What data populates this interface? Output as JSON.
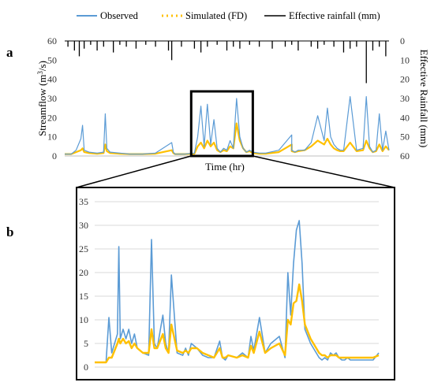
{
  "chart_data": [
    {
      "type": "line",
      "panel_label": "a",
      "xlabel": "Time (hr)",
      "ylabel": "Streamflow (m³/s)",
      "ylabel_right": "Effective Rainfall (mm)",
      "ylim": [
        0,
        60
      ],
      "yticks": [
        0,
        10,
        20,
        30,
        40,
        50,
        60
      ],
      "y2lim": [
        60,
        0
      ],
      "y2ticks": [
        0,
        10,
        20,
        30,
        40,
        50,
        60
      ],
      "y2_inverted": true,
      "grid": false,
      "legend_position": "top",
      "x_fraction": [
        0.0,
        0.02,
        0.035,
        0.05,
        0.055,
        0.06,
        0.075,
        0.1,
        0.12,
        0.125,
        0.13,
        0.14,
        0.17,
        0.2,
        0.24,
        0.28,
        0.33,
        0.335,
        0.34,
        0.37,
        0.4,
        0.41,
        0.42,
        0.43,
        0.44,
        0.45,
        0.46,
        0.47,
        0.48,
        0.49,
        0.5,
        0.51,
        0.52,
        0.53,
        0.54,
        0.55,
        0.56,
        0.57,
        0.58,
        0.6,
        0.62,
        0.66,
        0.7,
        0.7,
        0.71,
        0.72,
        0.74,
        0.76,
        0.78,
        0.8,
        0.81,
        0.82,
        0.83,
        0.84,
        0.85,
        0.86,
        0.88,
        0.9,
        0.92,
        0.93,
        0.94,
        0.95,
        0.96,
        0.97,
        0.98,
        0.99,
        1.0
      ],
      "series": [
        {
          "name": "Observed",
          "color": "#5B9BD5",
          "values": [
            1,
            1,
            3,
            9,
            16,
            3,
            2,
            1.5,
            2,
            22,
            4,
            2,
            1.5,
            1,
            1,
            1.5,
            7,
            2,
            1,
            1,
            1.5,
            10,
            26,
            5,
            27,
            6,
            19,
            4,
            2,
            4,
            3,
            8,
            4,
            30,
            10,
            4,
            2,
            3,
            2,
            1.5,
            1.5,
            3,
            11,
            3,
            2,
            3,
            3,
            7,
            21,
            8,
            25,
            10,
            6,
            4,
            3,
            3,
            31,
            3,
            4,
            31,
            5,
            2,
            3,
            22,
            3,
            13,
            3
          ]
        },
        {
          "name": "Simulated (FD)",
          "color": "#FFC000",
          "values": [
            1,
            1,
            2,
            3,
            4,
            2,
            1.5,
            1.2,
            1.5,
            6,
            2.5,
            1.5,
            1.2,
            1,
            1,
            1.2,
            3,
            1.5,
            1,
            1,
            1.2,
            5,
            7,
            4,
            8,
            5,
            7,
            3,
            2,
            3,
            2.5,
            5,
            4,
            17,
            8,
            4,
            2,
            2.5,
            1.5,
            1.2,
            1.2,
            2,
            6,
            2.5,
            2,
            2.5,
            3,
            5,
            8,
            6,
            9,
            6,
            4,
            3,
            2.5,
            2.5,
            7,
            2.5,
            3,
            8,
            4,
            2,
            2.5,
            6,
            2.5,
            5,
            3
          ]
        },
        {
          "name": "Effective rainfall (mm)",
          "color": "#000000",
          "type": "bar",
          "x_fraction": [
            0.01,
            0.03,
            0.045,
            0.06,
            0.08,
            0.1,
            0.12,
            0.15,
            0.17,
            0.19,
            0.22,
            0.25,
            0.28,
            0.32,
            0.33,
            0.36,
            0.4,
            0.42,
            0.44,
            0.47,
            0.5,
            0.52,
            0.54,
            0.57,
            0.6,
            0.64,
            0.68,
            0.7,
            0.72,
            0.76,
            0.78,
            0.8,
            0.83,
            0.86,
            0.88,
            0.9,
            0.93,
            0.95,
            0.97,
            0.99
          ],
          "values": [
            3,
            5,
            8,
            4,
            2,
            5,
            3,
            6,
            2,
            3,
            4,
            2,
            3,
            5,
            10,
            3,
            4,
            6,
            3,
            2,
            5,
            3,
            4,
            2,
            3,
            4,
            3,
            2,
            5,
            3,
            4,
            2,
            3,
            6,
            4,
            3,
            22,
            5,
            3,
            8
          ]
        }
      ],
      "zoom_box_x_fraction": [
        0.39,
        0.58
      ]
    },
    {
      "type": "line",
      "panel_label": "b",
      "ylim": [
        0,
        35
      ],
      "yticks": [
        0,
        5,
        10,
        15,
        20,
        25,
        30,
        35
      ],
      "grid": true,
      "x_fraction": [
        0.0,
        0.03,
        0.04,
        0.05,
        0.06,
        0.08,
        0.085,
        0.09,
        0.1,
        0.11,
        0.12,
        0.13,
        0.14,
        0.15,
        0.17,
        0.19,
        0.2,
        0.21,
        0.22,
        0.24,
        0.25,
        0.26,
        0.27,
        0.29,
        0.31,
        0.32,
        0.33,
        0.34,
        0.36,
        0.38,
        0.4,
        0.42,
        0.44,
        0.45,
        0.46,
        0.47,
        0.5,
        0.52,
        0.54,
        0.55,
        0.56,
        0.58,
        0.6,
        0.62,
        0.65,
        0.67,
        0.68,
        0.69,
        0.7,
        0.71,
        0.72,
        0.73,
        0.74,
        0.76,
        0.78,
        0.79,
        0.8,
        0.81,
        0.82,
        0.83,
        0.84,
        0.85,
        0.86,
        0.87,
        0.88,
        0.89,
        0.9,
        0.91,
        0.92,
        0.93,
        0.94,
        0.96,
        0.98,
        1.0
      ],
      "series": [
        {
          "name": "Observed",
          "color": "#5B9BD5",
          "values": [
            1,
            1,
            1,
            10.5,
            3,
            7,
            25.5,
            6,
            8,
            6,
            8,
            5,
            7,
            4,
            3,
            2.5,
            27,
            5,
            4,
            11,
            5,
            3,
            19.5,
            3,
            2.5,
            4,
            2.5,
            5,
            4,
            2.5,
            2,
            2,
            5.5,
            2,
            1.5,
            2.5,
            2,
            3,
            2,
            6.5,
            3.5,
            10.5,
            3,
            5,
            6.5,
            2,
            20,
            11,
            22,
            29,
            31,
            22,
            8,
            5,
            3,
            2,
            1.5,
            2,
            1.5,
            3,
            2.5,
            3,
            2,
            1.5,
            1.5,
            2,
            1.5,
            1.5,
            1.5,
            1.5,
            1.5,
            1.5,
            1.5,
            3
          ]
        },
        {
          "name": "Simulated (FD)",
          "color": "#FFC000",
          "values": [
            1,
            1,
            1,
            2,
            2,
            5,
            6,
            5,
            6,
            5,
            5.5,
            4,
            5,
            4,
            3,
            3,
            8,
            4,
            4,
            7,
            4,
            3,
            9,
            3.5,
            3,
            3.5,
            3,
            4,
            4,
            3,
            2.5,
            2,
            4,
            2,
            2,
            2.5,
            2,
            2.5,
            2,
            4.5,
            3,
            7.5,
            3,
            4,
            5,
            2.5,
            10,
            9,
            13.5,
            14,
            17.5,
            14,
            9,
            6,
            4,
            3,
            2.5,
            2.5,
            2,
            2.5,
            2.5,
            2.5,
            2,
            2,
            2,
            2,
            2,
            2,
            2,
            2,
            2,
            2,
            2,
            2.5
          ]
        }
      ]
    }
  ]
}
